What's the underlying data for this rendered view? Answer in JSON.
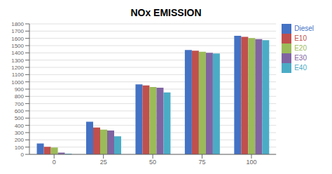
{
  "chart_data": {
    "type": "bar",
    "title": "NOx EMISSION",
    "categories": [
      0,
      25,
      50,
      75,
      100
    ],
    "series": [
      {
        "name": "Diesel",
        "color": "#4472C4",
        "values": [
          150,
          450,
          965,
          1440,
          1635
        ]
      },
      {
        "name": "E10",
        "color": "#C0504D",
        "values": [
          105,
          370,
          950,
          1430,
          1620
        ]
      },
      {
        "name": "E20",
        "color": "#9BBB59",
        "values": [
          95,
          340,
          930,
          1415,
          1605
        ]
      },
      {
        "name": "E30",
        "color": "#8064A2",
        "values": [
          25,
          330,
          920,
          1400,
          1590
        ]
      },
      {
        "name": "E40",
        "color": "#4BACC6",
        "values": [
          10,
          248,
          855,
          1390,
          1575
        ]
      }
    ],
    "ylim": [
      0,
      1800
    ],
    "yticks": [
      0,
      100,
      200,
      300,
      400,
      500,
      600,
      700,
      800,
      900,
      1000,
      1100,
      1200,
      1300,
      1400,
      1500,
      1600,
      1700,
      1800
    ],
    "grid": true,
    "legend": "upper right"
  }
}
